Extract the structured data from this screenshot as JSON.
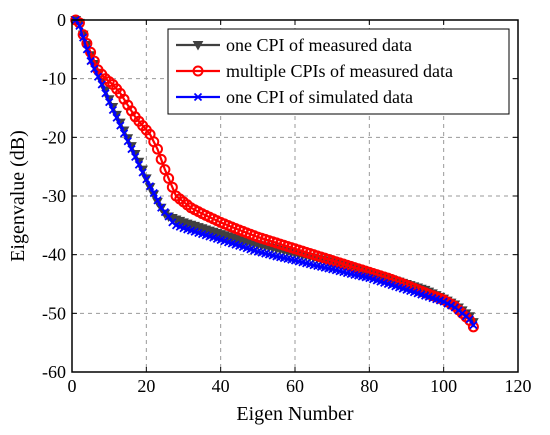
{
  "chart_data": {
    "type": "line",
    "xlabel": "Eigen Number",
    "ylabel": "Eigenvalue (dB)",
    "xlim": [
      0,
      120
    ],
    "ylim": [
      -60,
      0
    ],
    "x_ticks": [
      0,
      20,
      40,
      60,
      80,
      100,
      120
    ],
    "y_ticks": [
      0,
      -10,
      -20,
      -30,
      -40,
      -50,
      -60
    ],
    "grid": true,
    "legend_position": "top-right",
    "series": [
      {
        "name": "one CPI of measured data",
        "color": "#404040",
        "marker": "triangle-down",
        "x": [
          1,
          2,
          3,
          5,
          8,
          10,
          13,
          16,
          19,
          21,
          23,
          25,
          26,
          28,
          30,
          35,
          40,
          45,
          50,
          55,
          60,
          65,
          70,
          75,
          80,
          85,
          90,
          95,
          100,
          103,
          105,
          107,
          108
        ],
        "y": [
          0,
          -0.5,
          -2.5,
          -6,
          -10.5,
          -13.5,
          -17.5,
          -21.5,
          -25.5,
          -28.5,
          -31,
          -33,
          -33.5,
          -34,
          -34.5,
          -35.5,
          -36.5,
          -37.5,
          -38.3,
          -39,
          -39.8,
          -40.5,
          -41.3,
          -42,
          -43,
          -44,
          -45,
          -46,
          -47.5,
          -48.5,
          -49.5,
          -50.5,
          -51.5
        ]
      },
      {
        "name": "multiple CPIs of measured data",
        "color": "#ff0000",
        "marker": "circle",
        "x": [
          1,
          2,
          3,
          5,
          7,
          9,
          11,
          13,
          15,
          17,
          19,
          21,
          23,
          25,
          26,
          27,
          28,
          30,
          32,
          35,
          40,
          45,
          50,
          55,
          60,
          65,
          70,
          75,
          80,
          85,
          90,
          95,
          100,
          103,
          105,
          107,
          108
        ],
        "y": [
          0,
          -0.5,
          -2.5,
          -5.5,
          -8.5,
          -10,
          -11,
          -12.5,
          -14.5,
          -16.5,
          -18,
          -19.5,
          -22,
          -25.5,
          -27,
          -28.5,
          -30,
          -31,
          -32,
          -33,
          -34.5,
          -35.8,
          -37,
          -38,
          -39,
          -40,
          -41,
          -42,
          -43,
          -44,
          -45.2,
          -46.5,
          -47.7,
          -48.8,
          -50,
          -51.2,
          -52.3
        ]
      },
      {
        "name": "one CPI of simulated data",
        "color": "#0000ff",
        "marker": "x",
        "x": [
          1,
          2,
          3,
          5,
          8,
          10,
          13,
          16,
          19,
          22,
          24,
          26,
          27,
          28,
          30,
          35,
          40,
          45,
          50,
          55,
          60,
          65,
          70,
          75,
          80,
          85,
          90,
          95,
          100,
          103,
          105,
          107,
          108
        ],
        "y": [
          0,
          -1,
          -3,
          -7,
          -11,
          -14,
          -18,
          -22,
          -26,
          -29.5,
          -32,
          -33.5,
          -34.5,
          -35,
          -35.5,
          -36.5,
          -37.5,
          -38.5,
          -39.5,
          -40.3,
          -41,
          -41.8,
          -42.5,
          -43.3,
          -44,
          -45,
          -46,
          -47,
          -48,
          -49,
          -50,
          -51,
          -52
        ]
      }
    ]
  }
}
